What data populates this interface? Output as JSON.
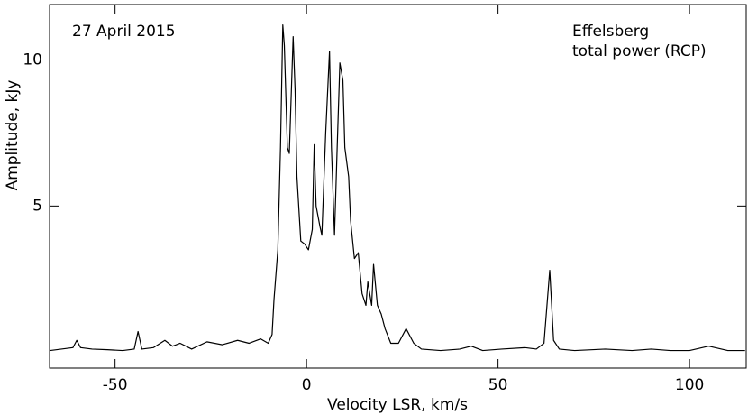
{
  "chart_data": {
    "type": "line",
    "xlabel": "Velocity LSR, km/s",
    "ylabel": "Amplitude, kJy",
    "annotations": [
      "27 April 2015",
      "Effelsberg",
      "total power (RCP)"
    ],
    "color": "#000000",
    "x": [
      -67,
      -64,
      -61,
      -60,
      -59,
      -56,
      -52,
      -48,
      -45,
      -44,
      -43,
      -40,
      -37,
      -35,
      -33,
      -30,
      -26,
      -22,
      -18,
      -15,
      -12,
      -10,
      -9,
      -8.5,
      -7.5,
      -6.8,
      -6.2,
      -5.8,
      -5,
      -4.5,
      -3.5,
      -3,
      -2.5,
      -1.5,
      -0.5,
      0.5,
      1.5,
      2,
      2.5,
      3.5,
      4,
      5,
      6,
      6.5,
      7.3,
      8,
      8.7,
      9.5,
      10,
      11,
      11.5,
      12.5,
      13.5,
      14.5,
      15.5,
      16,
      17,
      17.5,
      18.5,
      19.5,
      20.5,
      22,
      24,
      26,
      28,
      30,
      35,
      40,
      43,
      46,
      51,
      57,
      60,
      62,
      63.5,
      64.5,
      66,
      70,
      78,
      85,
      90,
      95,
      100,
      105,
      110,
      114.5
    ],
    "values": [
      0.05,
      0.1,
      0.15,
      0.4,
      0.15,
      0.1,
      0.08,
      0.05,
      0.1,
      0.7,
      0.1,
      0.15,
      0.4,
      0.2,
      0.3,
      0.1,
      0.35,
      0.25,
      0.4,
      0.3,
      0.45,
      0.3,
      0.6,
      1.8,
      3.5,
      7,
      11.2,
      10.5,
      7,
      6.8,
      10.8,
      9,
      6,
      3.8,
      3.7,
      3.5,
      4.2,
      7.1,
      5,
      4.3,
      4,
      7.5,
      10.3,
      7,
      4,
      7,
      9.9,
      9.3,
      7,
      6,
      4.5,
      3.2,
      3.4,
      2,
      1.6,
      2.4,
      1.6,
      3,
      1.6,
      1.3,
      0.8,
      0.3,
      0.3,
      0.8,
      0.3,
      0.1,
      0.05,
      0.1,
      0.2,
      0.05,
      0.1,
      0.15,
      0.1,
      0.3,
      2.8,
      0.4,
      0.1,
      0.05,
      0.1,
      0.05,
      0.1,
      0.05,
      0.05,
      0.2,
      0.05,
      0.05
    ],
    "xlim": [
      -67.1,
      114.8
    ],
    "ylim": [
      -0.55,
      11.9
    ],
    "xticks": [
      -50,
      0,
      50,
      100
    ],
    "yticks": [
      5,
      10
    ]
  }
}
